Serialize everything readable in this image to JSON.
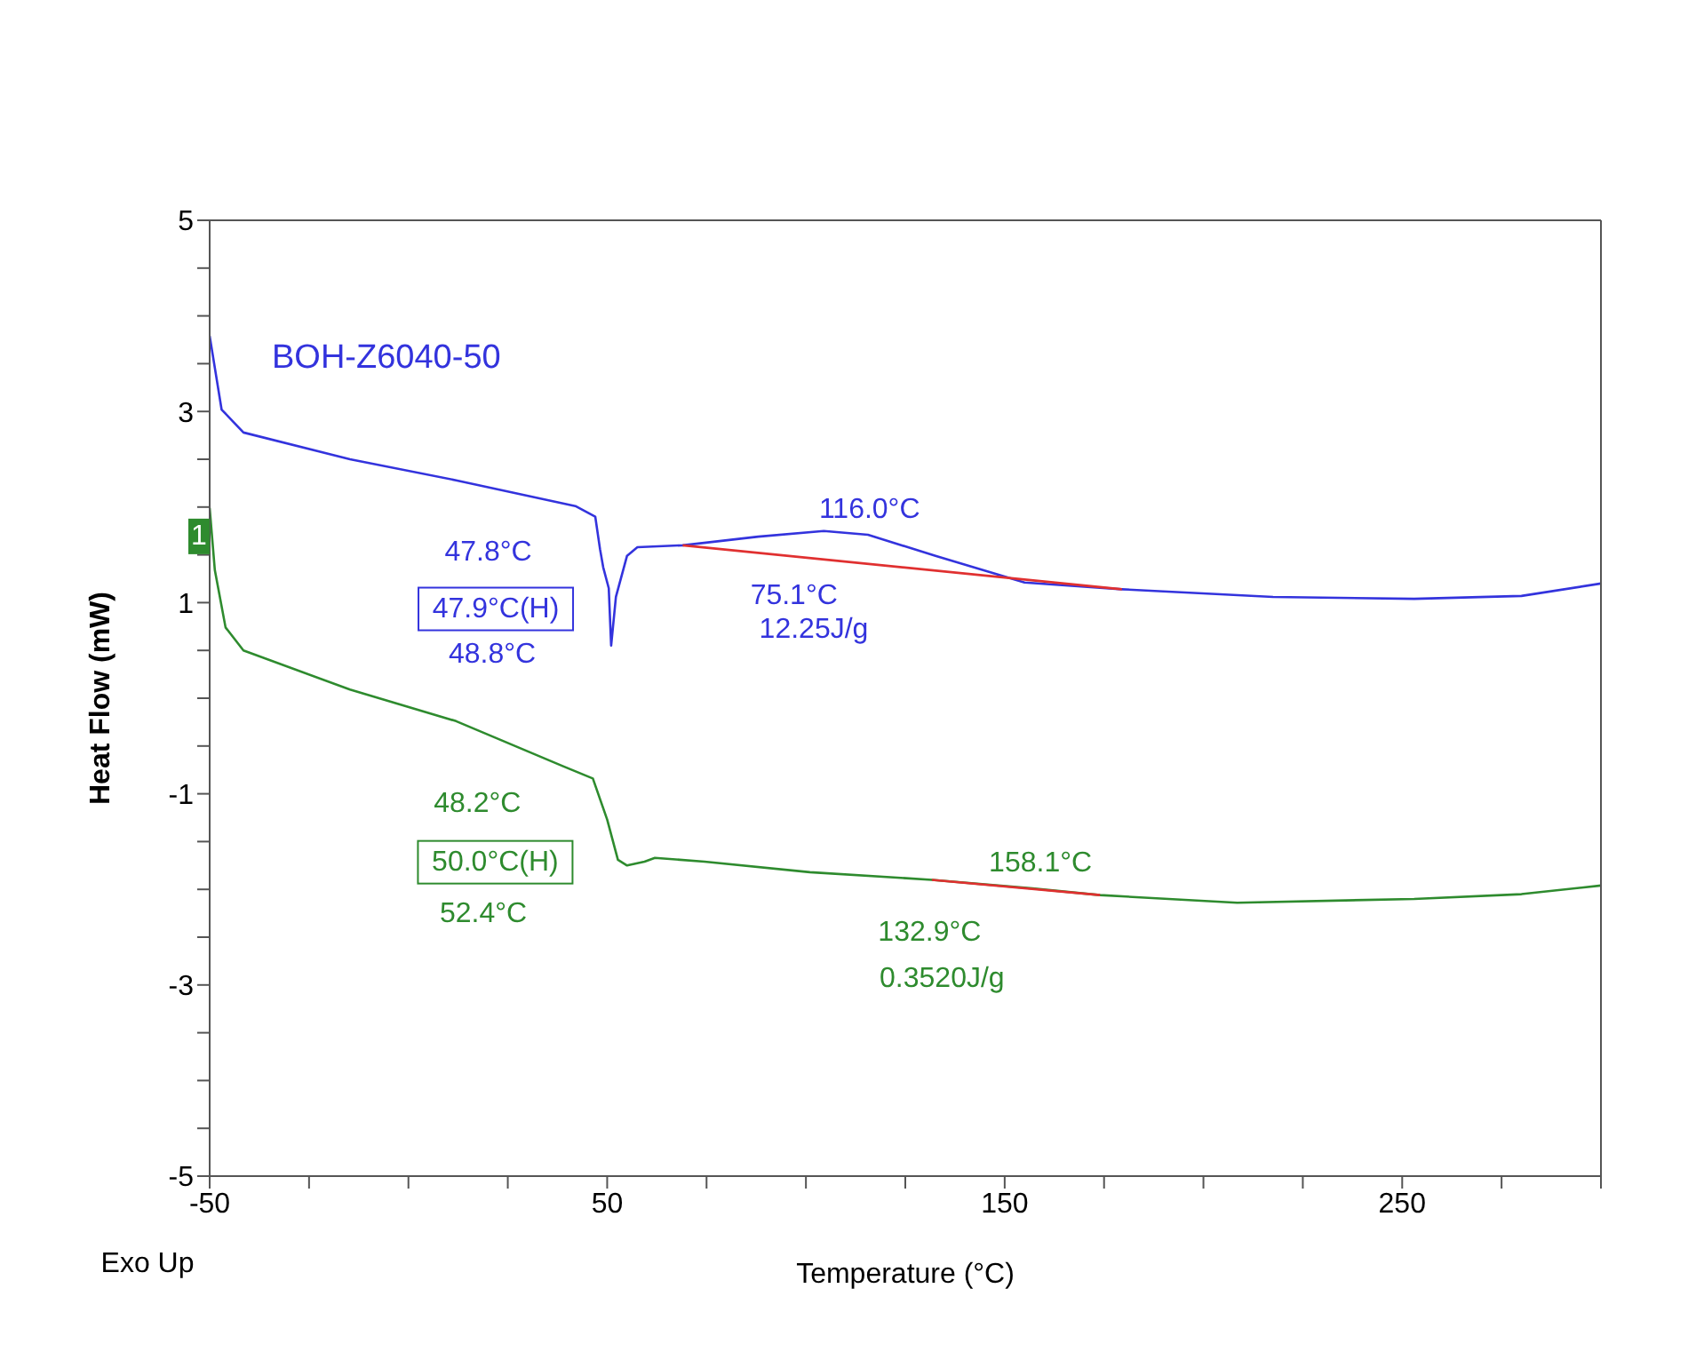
{
  "chart_data": {
    "type": "line",
    "xlabel": "Temperature (°C)",
    "ylabel": "Heat Flow (mW)",
    "xlim": [
      -50,
      300
    ],
    "ylim": [
      -5,
      5
    ],
    "xticks": [
      -50,
      {
        "value": -25,
        "label": null
      },
      {
        "value": 0,
        "label": null
      },
      {
        "value": 25,
        "label": null
      },
      50,
      {
        "value": 75,
        "label": null
      },
      {
        "value": 100,
        "label": null
      },
      {
        "value": 125,
        "label": null
      },
      150,
      {
        "value": 175,
        "label": null
      },
      {
        "value": 200,
        "label": null
      },
      {
        "value": 225,
        "label": null
      },
      250,
      {
        "value": 275,
        "label": null
      },
      {
        "value": 300,
        "label": null
      }
    ],
    "yticks": [
      -5,
      {
        "value": -4.5,
        "label": null
      },
      {
        "value": -4,
        "label": null
      },
      {
        "value": -3.5,
        "label": null
      },
      -3,
      {
        "value": -2.5,
        "label": null
      },
      {
        "value": -2,
        "label": null
      },
      {
        "value": -1.5,
        "label": null
      },
      -1,
      {
        "value": -0.5,
        "label": null
      },
      {
        "value": 0,
        "label": null
      },
      {
        "value": 0.5,
        "label": null
      },
      1,
      {
        "value": 1.5,
        "label": null
      },
      {
        "value": 2,
        "label": null
      },
      {
        "value": 2.5,
        "label": null
      },
      3,
      {
        "value": 3.5,
        "label": null
      },
      {
        "value": 4,
        "label": null
      },
      {
        "value": 4.5,
        "label": null
      },
      5
    ],
    "legend": false,
    "marker": "none",
    "line_style": "solid",
    "series": [
      {
        "name": "BOH-Z6040-50",
        "color": "#3333dd",
        "x": [
          -50,
          -47,
          -41.5,
          -14.7,
          12,
          42,
          47,
          48.2,
          49,
          50.4,
          51,
          52.2,
          55,
          57.6,
          69,
          88,
          104.5,
          115.6,
          132.6,
          155,
          179.5,
          217.5,
          253,
          280,
          300
        ],
        "values": [
          3.79,
          3.02,
          2.78,
          2.5,
          2.28,
          2.01,
          1.9,
          1.56,
          1.37,
          1.15,
          0.55,
          1.06,
          1.49,
          1.58,
          1.6,
          1.69,
          1.75,
          1.71,
          1.49,
          1.21,
          1.14,
          1.06,
          1.04,
          1.07,
          1.2
        ]
      },
      {
        "color": "#2e8b2e",
        "x": [
          -50,
          -48.7,
          -46,
          -41.5,
          -14.7,
          12,
          38.8,
          46.4,
          50,
          52.7,
          55,
          59.4,
          62,
          74.5,
          101,
          131.7,
          157,
          174,
          208.5,
          253,
          280,
          300
        ],
        "values": [
          1.99,
          1.34,
          0.74,
          0.5,
          0.09,
          -0.24,
          -0.71,
          -0.84,
          -1.27,
          -1.69,
          -1.75,
          -1.71,
          -1.67,
          -1.71,
          -1.82,
          -1.9,
          -1.99,
          -2.06,
          -2.14,
          -2.1,
          -2.05,
          -1.96
        ]
      },
      {
        "type": "line",
        "color": "#e03030",
        "x": [
          69,
          179.5
        ],
        "values": [
          1.6,
          1.14
        ]
      },
      {
        "type": "line",
        "color": "#e03030",
        "x": [
          131.7,
          174
        ],
        "values": [
          -1.9,
          -2.06
        ]
      }
    ],
    "annotations": [
      {
        "text": "47.8°C",
        "x": 47.8,
        "y": 1.67
      },
      {
        "text": "47.9°C(H)",
        "x": 47.9,
        "y": 1.64
      },
      {
        "text": "116.0°C",
        "x": 116,
        "y": 1.71
      },
      {
        "text": "75.1°C",
        "x": 75.1,
        "y": 1.63
      },
      {
        "text": "48.2°C",
        "x": 48.2,
        "y": -1.05
      },
      {
        "text": "50.0°C(H)",
        "x": 50,
        "y": -1.27
      },
      {
        "text": "158.1°C",
        "x": 158.1,
        "y": -1.99
      },
      {
        "text": "132.9°C",
        "x": 132.9,
        "y": -1.9
      },
      {
        "text": "0.3520J/g",
        "x": 132.9,
        "y": -1.9
      },
      {
        "text": "1",
        "x": -50,
        "y": 1.99
      },
      "48.8°C",
      "12.25J/g",
      "52.4°C",
      "Exo Up"
    ]
  }
}
